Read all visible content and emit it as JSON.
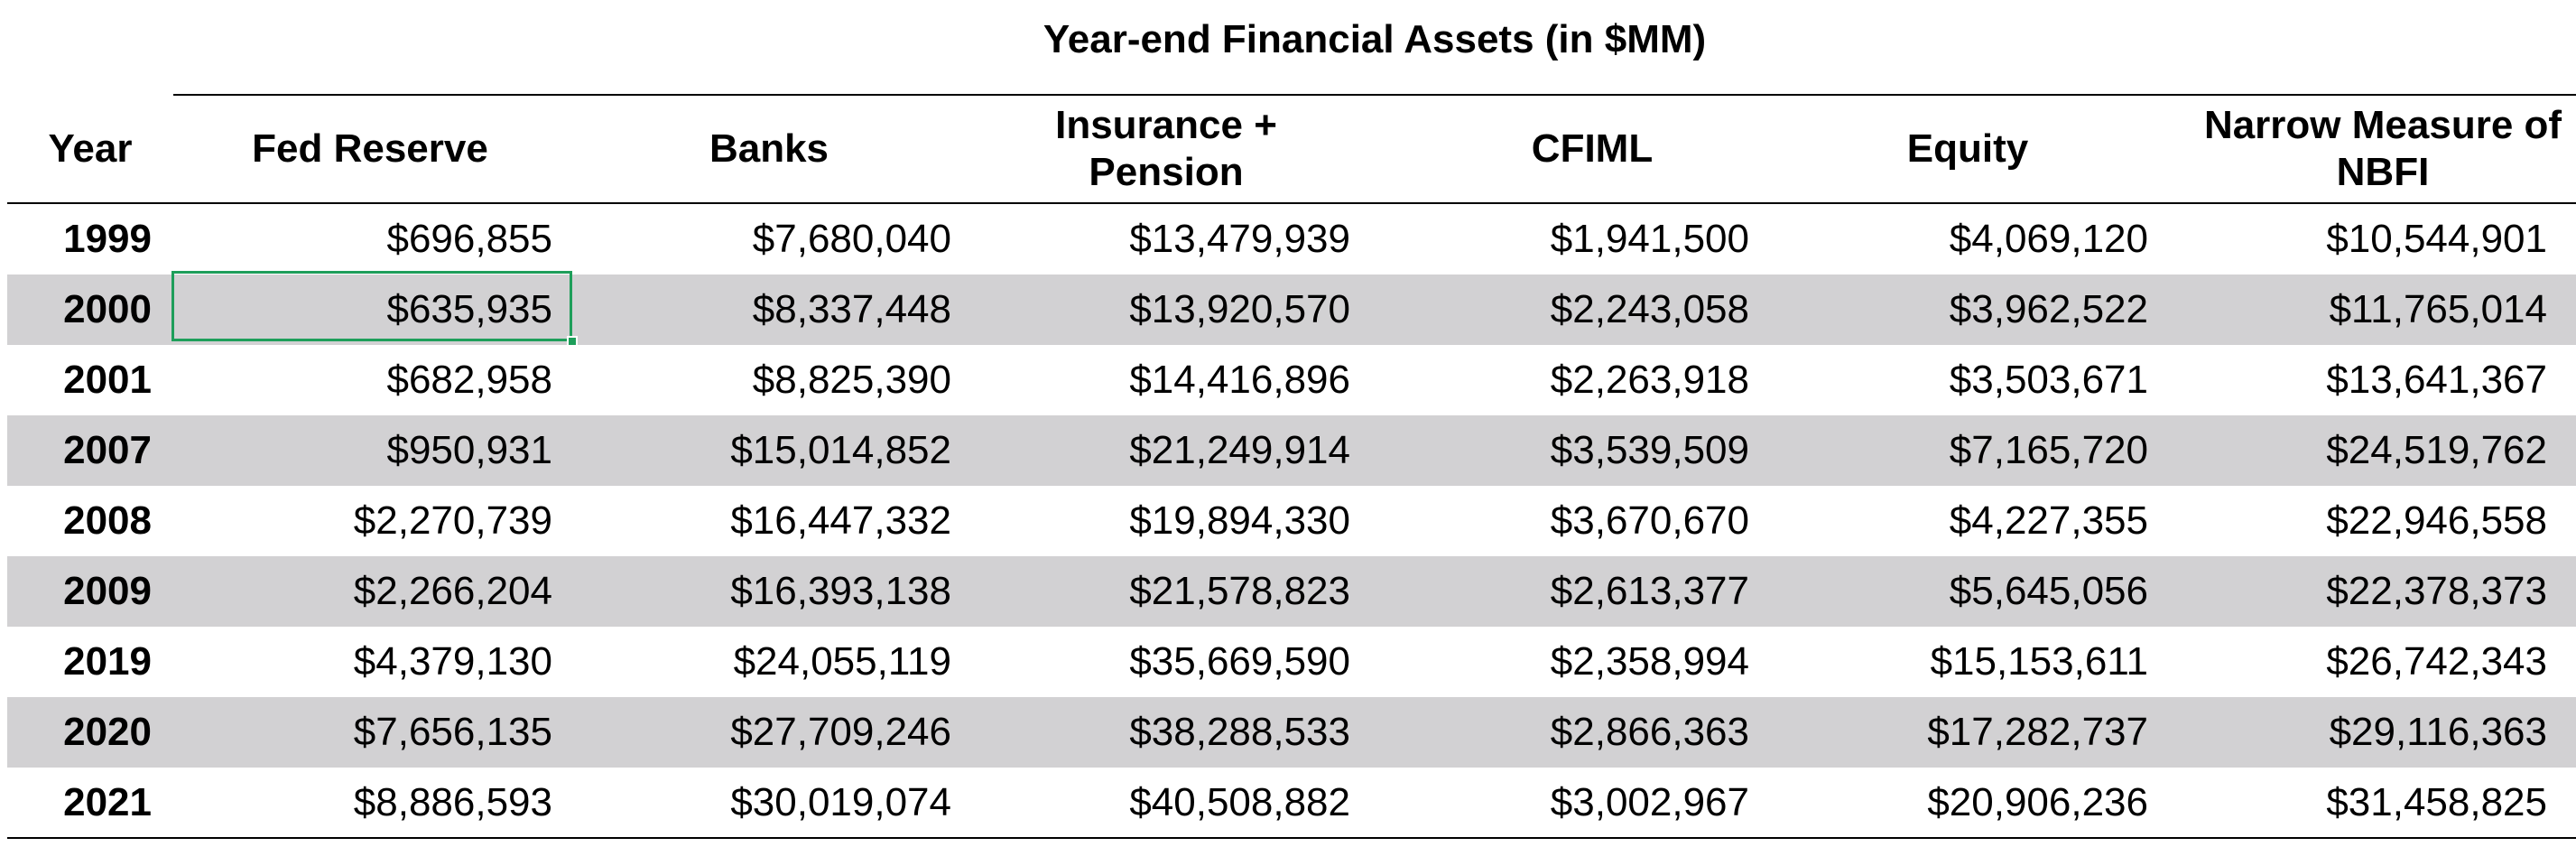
{
  "chart_data": {
    "type": "table",
    "title": "Year-end Financial Assets (in $MM)",
    "columns": [
      "Year",
      "Fed Reserve",
      "Banks",
      "Insurance + Pension",
      "CFIML",
      "Equity",
      "Narrow Measure of NBFI"
    ],
    "header_lines": [
      [
        "Year"
      ],
      [
        "Fed Reserve"
      ],
      [
        "Banks"
      ],
      [
        "Insurance +",
        "Pension"
      ],
      [
        "CFIML"
      ],
      [
        "Equity"
      ],
      [
        "Narrow Measure of",
        "NBFI"
      ]
    ],
    "rows": [
      {
        "year": "1999",
        "cells": [
          "$696,855",
          "$7,680,040",
          "$13,479,939",
          "$1,941,500",
          "$4,069,120",
          "$10,544,901"
        ]
      },
      {
        "year": "2000",
        "cells": [
          "$635,935",
          "$8,337,448",
          "$13,920,570",
          "$2,243,058",
          "$3,962,522",
          "$11,765,014"
        ]
      },
      {
        "year": "2001",
        "cells": [
          "$682,958",
          "$8,825,390",
          "$14,416,896",
          "$2,263,918",
          "$3,503,671",
          "$13,641,367"
        ]
      },
      {
        "year": "2007",
        "cells": [
          "$950,931",
          "$15,014,852",
          "$21,249,914",
          "$3,539,509",
          "$7,165,720",
          "$24,519,762"
        ]
      },
      {
        "year": "2008",
        "cells": [
          "$2,270,739",
          "$16,447,332",
          "$19,894,330",
          "$3,670,670",
          "$4,227,355",
          "$22,946,558"
        ]
      },
      {
        "year": "2009",
        "cells": [
          "$2,266,204",
          "$16,393,138",
          "$21,578,823",
          "$2,613,377",
          "$5,645,056",
          "$22,378,373"
        ]
      },
      {
        "year": "2019",
        "cells": [
          "$4,379,130",
          "$24,055,119",
          "$35,669,590",
          "$2,358,994",
          "$15,153,611",
          "$26,742,343"
        ]
      },
      {
        "year": "2020",
        "cells": [
          "$7,656,135",
          "$27,709,246",
          "$38,288,533",
          "$2,866,363",
          "$17,282,737",
          "$29,116,363"
        ]
      },
      {
        "year": "2021",
        "cells": [
          "$8,886,593",
          "$30,019,074",
          "$40,508,882",
          "$3,002,967",
          "$20,906,236",
          "$31,458,825"
        ]
      }
    ],
    "shaded_rows": [
      1,
      3,
      5,
      7
    ],
    "selected_cell": {
      "row": 1,
      "column": 1
    },
    "colors": {
      "row_shading": "#d2d1d3",
      "selection": "#1e9e5a",
      "text": "#000000",
      "background": "#ffffff"
    }
  }
}
